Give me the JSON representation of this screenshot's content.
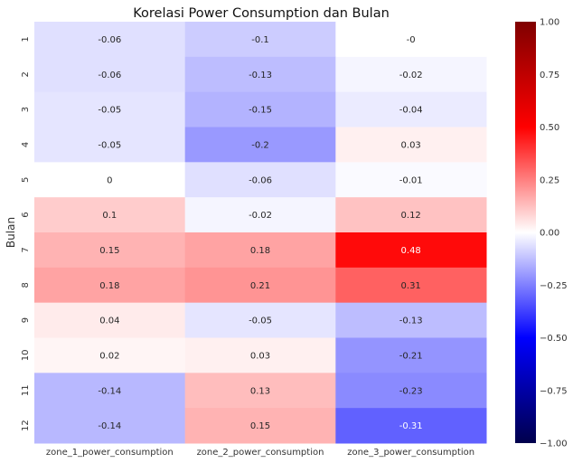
{
  "chart_data": {
    "type": "heatmap",
    "title": "Korelasi Power Consumption dan Bulan",
    "xlabel": "",
    "ylabel": "Bulan",
    "columns": [
      "zone_1_power_consumption",
      "zone_2_power_consumption",
      "zone_3_power_consumption"
    ],
    "rows": [
      "1",
      "2",
      "3",
      "4",
      "5",
      "6",
      "7",
      "8",
      "9",
      "10",
      "11",
      "12"
    ],
    "values": [
      [
        -0.06,
        -0.1,
        0
      ],
      [
        -0.06,
        -0.13,
        -0.02
      ],
      [
        -0.05,
        -0.15,
        -0.04
      ],
      [
        -0.05,
        -0.2,
        0.03
      ],
      [
        0,
        -0.06,
        -0.01
      ],
      [
        0.1,
        -0.02,
        0.12
      ],
      [
        0.15,
        0.18,
        0.48
      ],
      [
        0.18,
        0.21,
        0.31
      ],
      [
        0.04,
        -0.05,
        -0.13
      ],
      [
        0.02,
        0.03,
        -0.21
      ],
      [
        -0.14,
        0.13,
        -0.23
      ],
      [
        -0.14,
        0.15,
        -0.31
      ]
    ],
    "cell_labels": [
      [
        "-0.06",
        "-0.1",
        "-0"
      ],
      [
        "-0.06",
        "-0.13",
        "-0.02"
      ],
      [
        "-0.05",
        "-0.15",
        "-0.04"
      ],
      [
        "-0.05",
        "-0.2",
        "0.03"
      ],
      [
        "0",
        "-0.06",
        "-0.01"
      ],
      [
        "0.1",
        "-0.02",
        "0.12"
      ],
      [
        "0.15",
        "0.18",
        "0.48"
      ],
      [
        "0.18",
        "0.21",
        "0.31"
      ],
      [
        "0.04",
        "-0.05",
        "-0.13"
      ],
      [
        "0.02",
        "0.03",
        "-0.21"
      ],
      [
        "-0.14",
        "0.13",
        "-0.23"
      ],
      [
        "-0.14",
        "0.15",
        "-0.31"
      ]
    ],
    "colormap": "seismic",
    "vmin": -1,
    "vmax": 1,
    "colorbar_ticks": [
      -1,
      -0.75,
      -0.5,
      -0.25,
      0,
      0.25,
      0.5,
      0.75,
      1
    ],
    "colorbar_tick_labels": [
      "−1.00",
      "−0.75",
      "−0.50",
      "−0.25",
      "0.00",
      "0.25",
      "0.50",
      "0.75",
      "1.00"
    ],
    "colorbar_placement": "right"
  }
}
